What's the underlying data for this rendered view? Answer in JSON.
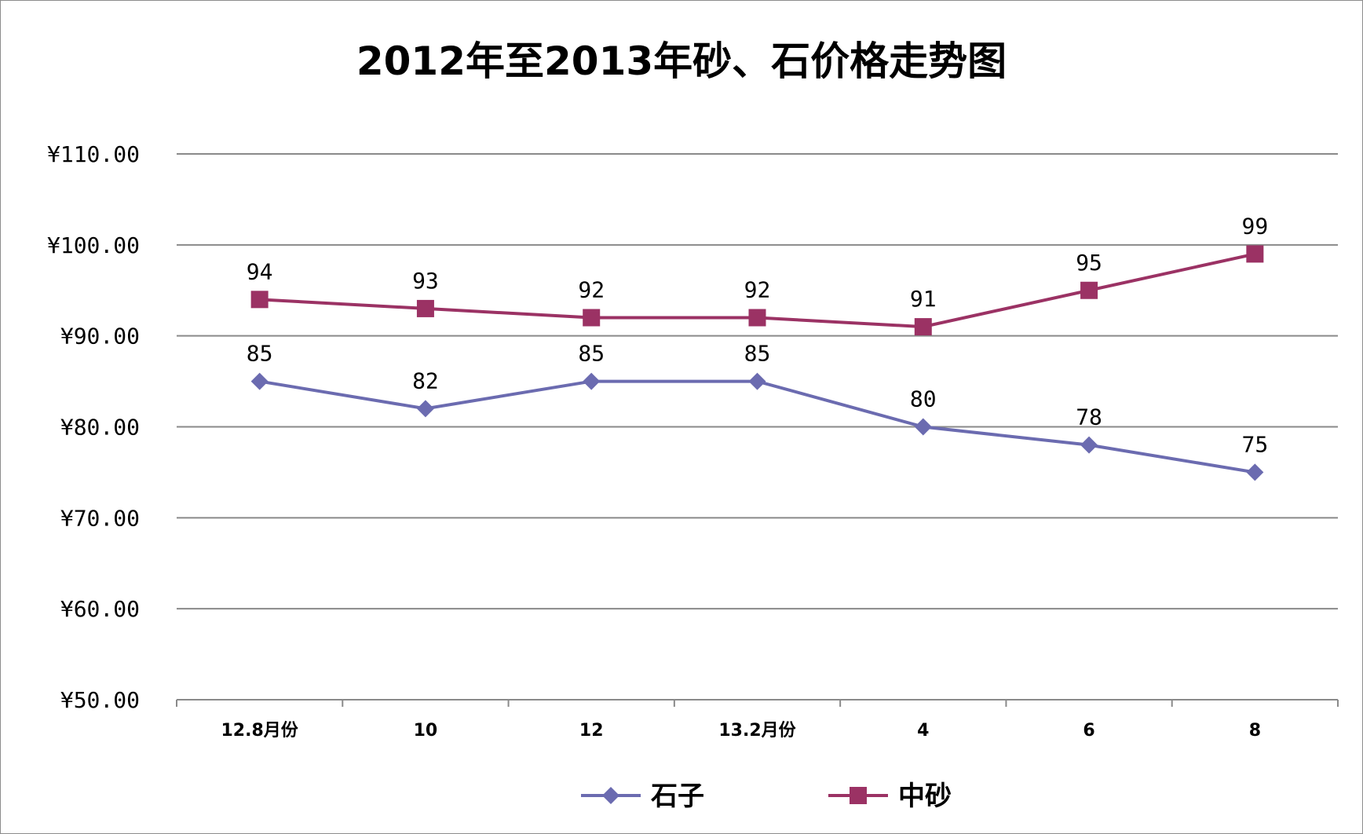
{
  "chart_data": {
    "type": "line",
    "title": "2012年至2013年砂、石价格走势图",
    "categories": [
      "12.8月份",
      "10",
      "12",
      "13.2月份",
      "4",
      "6",
      "8"
    ],
    "ylim": [
      50,
      110
    ],
    "ytick_step": 10,
    "ytick_labels": [
      "¥50.00",
      "¥60.00",
      "¥70.00",
      "¥80.00",
      "¥90.00",
      "¥100.00",
      "¥110.00"
    ],
    "grid": true,
    "legend_position": "bottom",
    "series": [
      {
        "name": "石子",
        "values": [
          85,
          82,
          85,
          85,
          80,
          78,
          75
        ],
        "color": "#6b6bb0",
        "marker": "diamond"
      },
      {
        "name": "中砂",
        "values": [
          94,
          93,
          92,
          92,
          91,
          95,
          99
        ],
        "color": "#9b3264",
        "marker": "square"
      }
    ]
  }
}
